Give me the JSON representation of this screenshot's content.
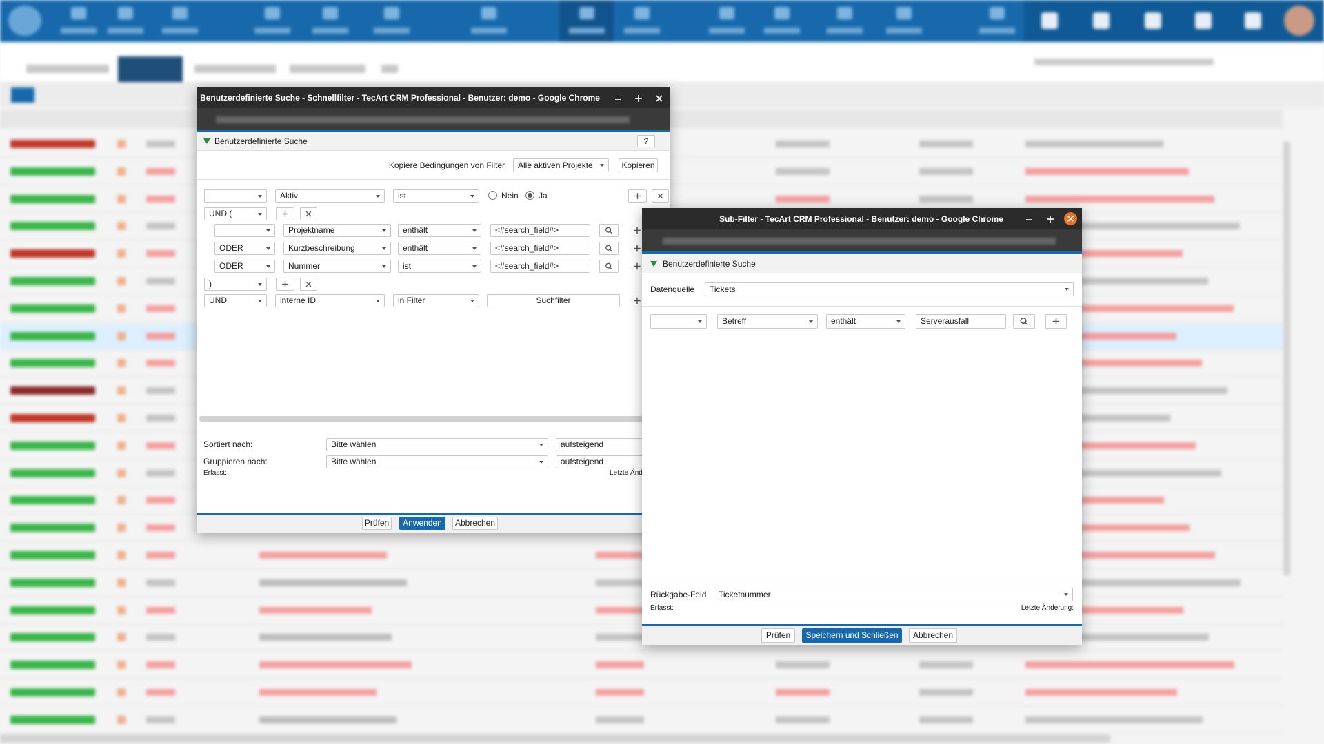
{
  "filter_dialog": {
    "window_title": "Benutzerdefinierte Suche - Schnellfilter - TecArt CRM Professional - Benutzer: demo - Google Chrome",
    "header": "Benutzerdefinierte Suche",
    "help": "?",
    "copy_label": "Kopiere Bedingungen von Filter",
    "copy_source": "Alle aktiven Projekte",
    "copy_button": "Kopieren",
    "conditions": [
      {
        "field": "Aktiv",
        "operator": "ist",
        "options": [
          "Nein",
          "Ja"
        ]
      },
      {
        "logic": "UND ("
      },
      {
        "field": "Projektname",
        "operator": "enthält",
        "value": "<#search_field#>"
      },
      {
        "logic": "ODER",
        "field": "Kurzbeschreibung",
        "operator": "enthält",
        "value": "<#search_field#>"
      },
      {
        "logic": "ODER",
        "field": "Nummer",
        "operator": "ist",
        "value": "<#search_field#>"
      },
      {
        "logic": ")"
      },
      {
        "logic": "UND",
        "field": "interne ID",
        "operator": "in Filter",
        "button": "Suchfilter"
      }
    ],
    "sort_label": "Sortiert nach:",
    "sort_field": "Bitte wählen",
    "sort_order": "aufsteigend",
    "group_label": "Gruppieren nach:",
    "group_field": "Bitte wählen",
    "group_order": "aufsteigend",
    "created_label": "Erfasst:",
    "modified_label": "Letzte Änderung:",
    "buttons": [
      "Prüfen",
      "Anwenden",
      "Abbrechen"
    ]
  },
  "subfilter_dialog": {
    "window_title": "Sub-Filter - TecArt CRM Professional - Benutzer: demo - Google Chrome",
    "header": "Benutzerdefinierte Suche",
    "source_label": "Datenquelle",
    "source": "Tickets",
    "condition": {
      "field": "Betreff",
      "operator": "enthält",
      "value": "Serverausfall"
    },
    "return_label": "Rückgabe-Feld",
    "return_field": "Ticketnummer",
    "created_label": "Erfasst:",
    "modified_label": "Letzte Änderung:",
    "buttons": [
      "Prüfen",
      "Speichern und Schließen",
      "Abbrechen"
    ]
  }
}
